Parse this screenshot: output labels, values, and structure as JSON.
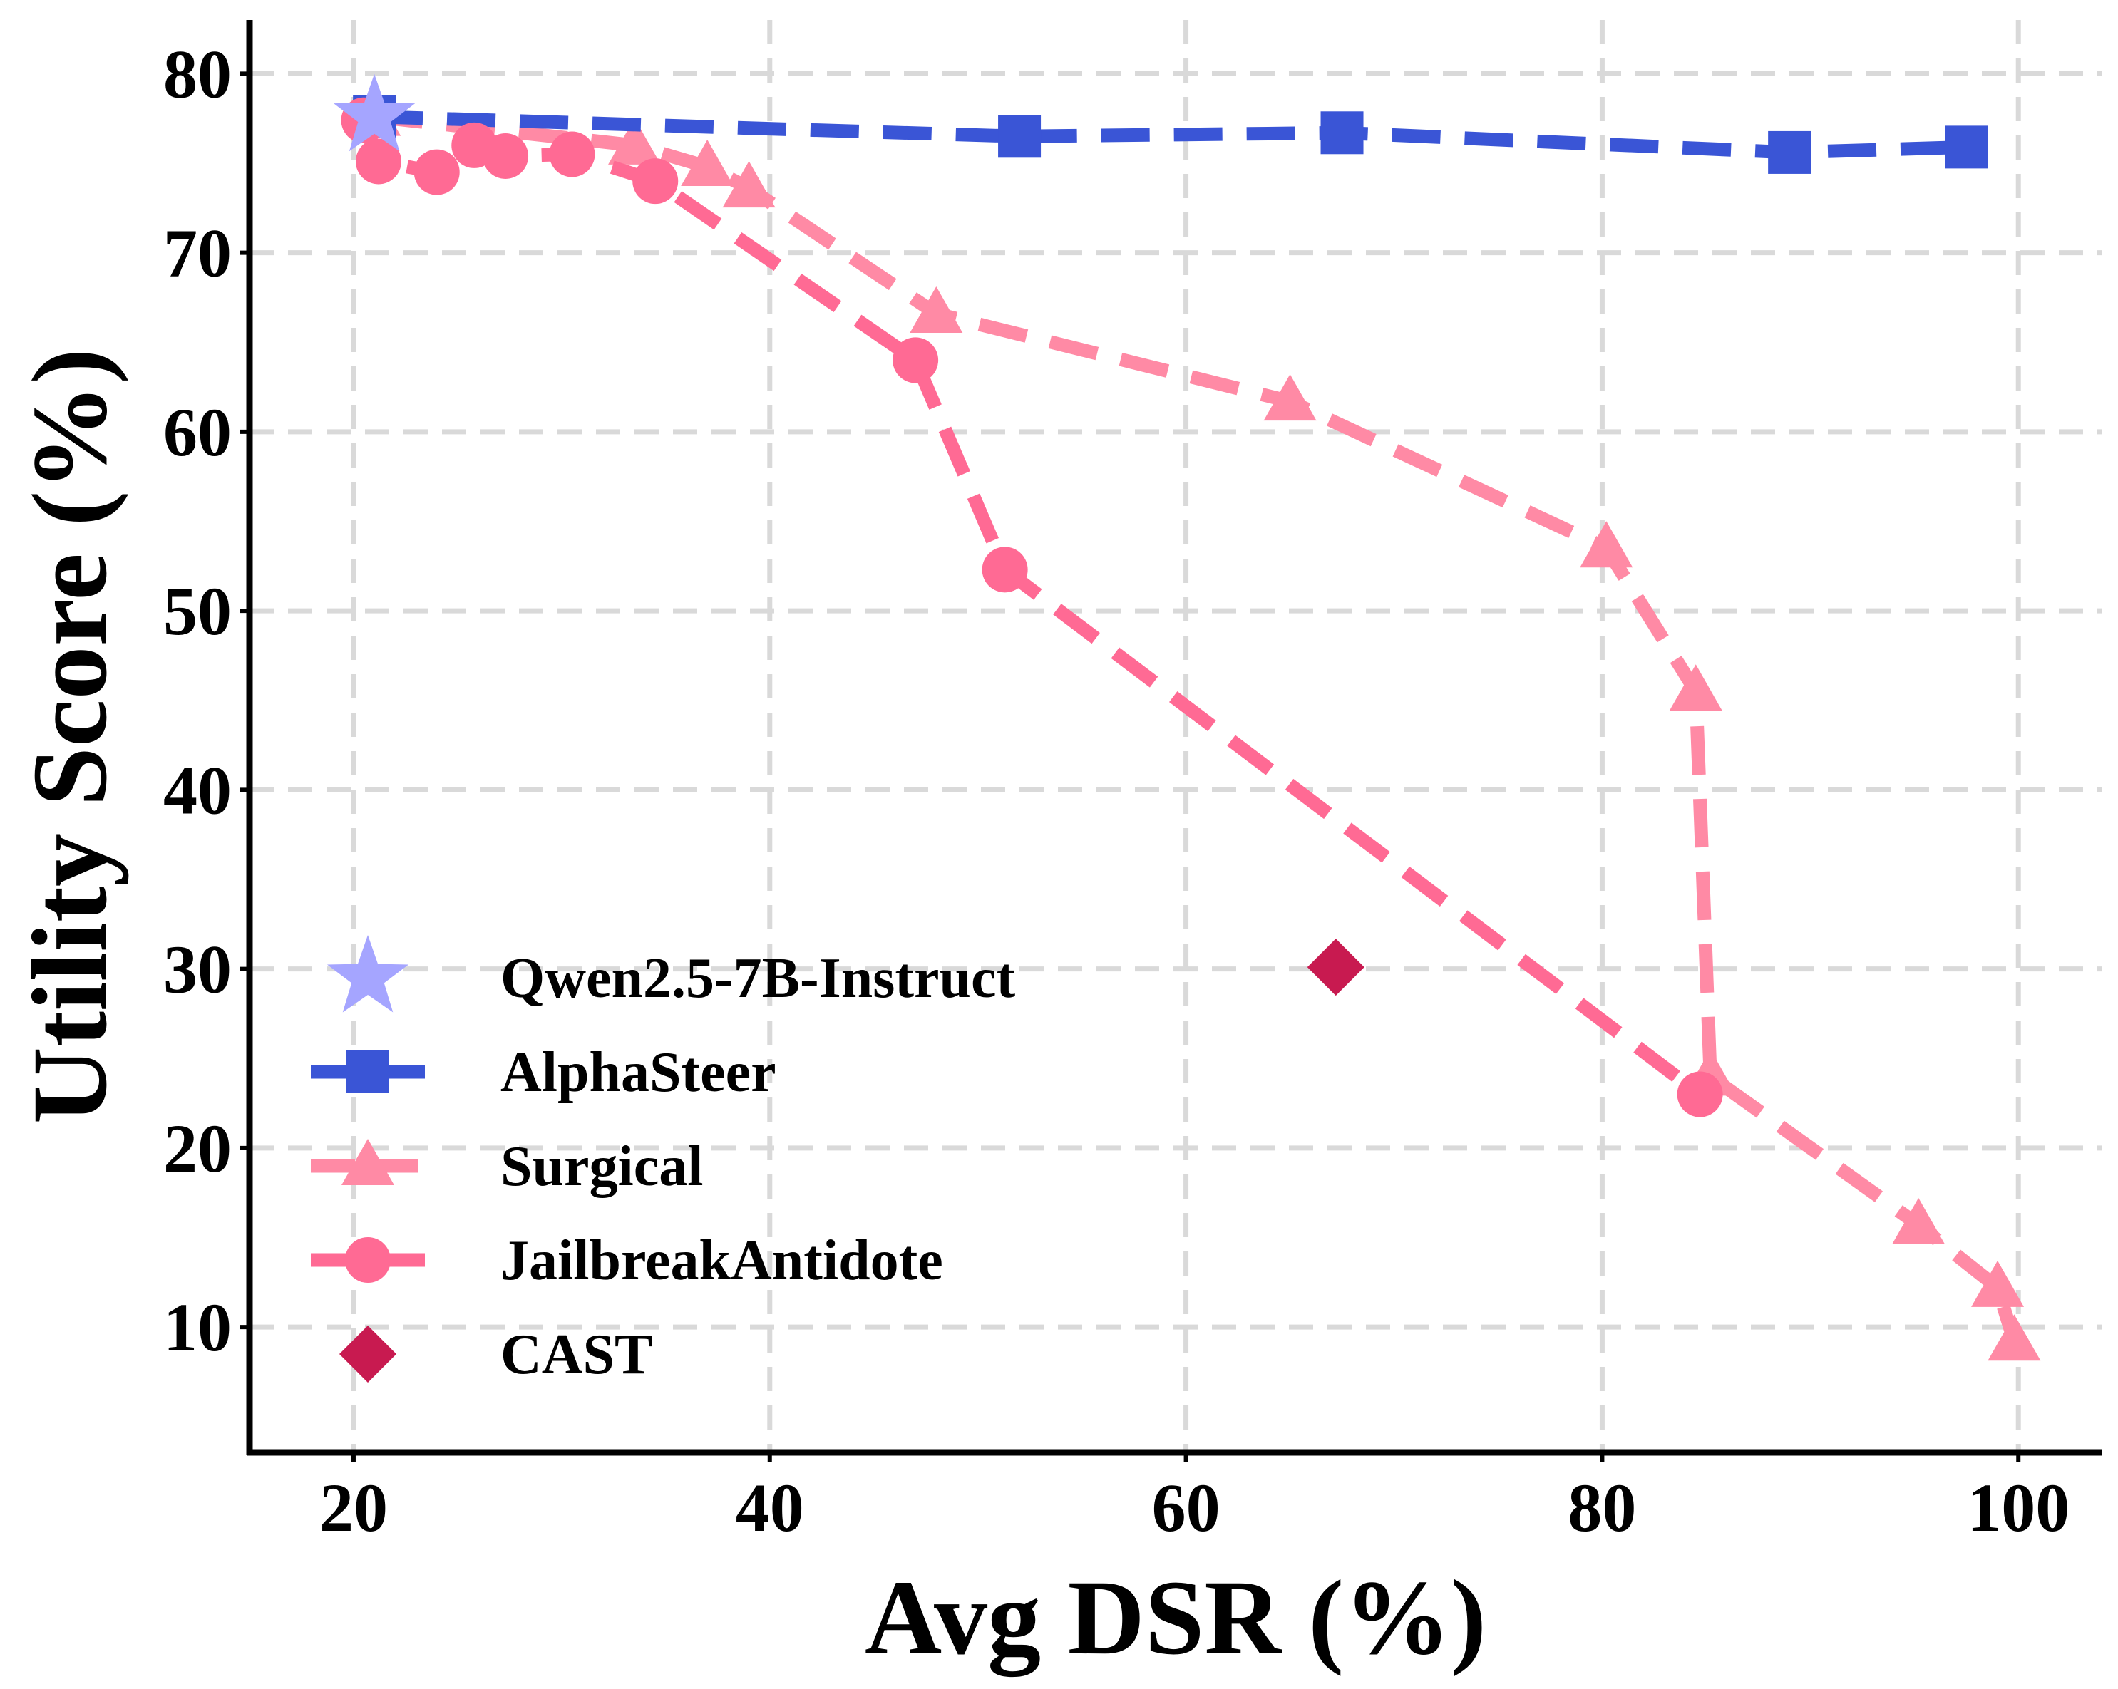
{
  "chart_data": {
    "type": "scatter",
    "xlabel": "Avg DSR (%)",
    "ylabel": "Utility Score (%)",
    "xlim": [
      15,
      104
    ],
    "ylim": [
      3,
      83
    ],
    "xticks": [
      20,
      40,
      60,
      80,
      100
    ],
    "yticks": [
      10,
      20,
      30,
      40,
      50,
      60,
      70,
      80
    ],
    "grid": true,
    "legend_position": "bottom-left",
    "series": [
      {
        "name": "Qwen2.5-7B-Instruct",
        "marker": "star",
        "line": "none",
        "color": "#a5a5ff",
        "points": [
          [
            21,
            77.6
          ]
        ]
      },
      {
        "name": "AlphaSteer",
        "marker": "square",
        "line": "dashed",
        "color": "#3a55d6",
        "points": [
          [
            21,
            77.6
          ],
          [
            52,
            76.5
          ],
          [
            67.5,
            76.7
          ],
          [
            89,
            75.6
          ],
          [
            97.5,
            75.9
          ]
        ]
      },
      {
        "name": "Surgical",
        "marker": "triangle",
        "line": "dashed",
        "color": "#ff8aa5",
        "points": [
          [
            21,
            77.6
          ],
          [
            33.5,
            76
          ],
          [
            37,
            74.8
          ],
          [
            39,
            73.6
          ],
          [
            48,
            66.6
          ],
          [
            65,
            61.7
          ],
          [
            80.2,
            53.5
          ],
          [
            84.5,
            45.5
          ],
          [
            85.2,
            24
          ],
          [
            95.2,
            15.7
          ],
          [
            99,
            12.2
          ],
          [
            99.8,
            9.2
          ]
        ]
      },
      {
        "name": "JailbreakAntidote",
        "marker": "circle",
        "line": "dashed",
        "color": "#ff6a94",
        "points": [
          [
            20.5,
            77.4
          ],
          [
            21.2,
            75.1
          ],
          [
            24,
            74.5
          ],
          [
            25.8,
            76
          ],
          [
            27.3,
            75.4
          ],
          [
            30.5,
            75.5
          ],
          [
            34.5,
            74
          ],
          [
            47,
            64
          ],
          [
            51.3,
            52.3
          ],
          [
            84.7,
            23
          ]
        ]
      },
      {
        "name": "CAST",
        "marker": "diamond",
        "line": "none",
        "color": "#c81a50",
        "points": [
          [
            67.2,
            30.1
          ]
        ]
      }
    ]
  }
}
